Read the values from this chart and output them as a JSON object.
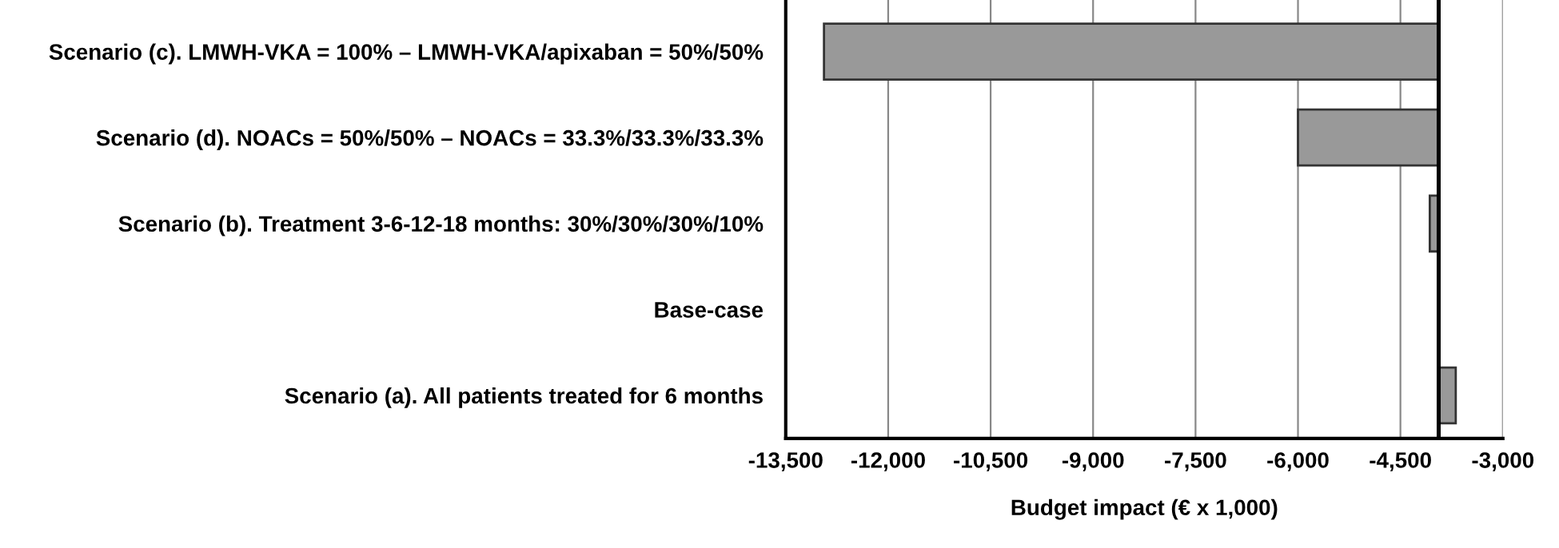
{
  "chart_data": {
    "type": "bar",
    "orientation": "horizontal",
    "categories": [
      "Scenario (c). LMWH-VKA = 100% – LMWH-VKA/apixaban = 50%/50%",
      "Scenario (d). NOACs = 50%/50% – NOACs = 33.3%/33.3%/33.3%",
      "Scenario (b). Treatment 3-6-12-18 months: 30%/30%/30%/10%",
      "Base-case",
      "Scenario (a). All patients treated for 6 months"
    ],
    "base": [
      -3940,
      -3940,
      -3940,
      null,
      -3940
    ],
    "values": [
      -9000,
      -2060,
      -130,
      null,
      250
    ],
    "color": "#999999",
    "xlabel": "Budget impact (€ x 1,000)",
    "xlim": [
      -13500,
      -3000
    ],
    "xticks": [
      {
        "value": -13500,
        "label": "-13,500"
      },
      {
        "value": -12000,
        "label": "-12,000"
      },
      {
        "value": -10500,
        "label": "-10,500"
      },
      {
        "value": -9000,
        "label": "-9,000"
      },
      {
        "value": -7500,
        "label": "-7,500"
      },
      {
        "value": -6000,
        "label": "-6,000"
      },
      {
        "value": -4500,
        "label": "-4,500"
      },
      {
        "value": -3000,
        "label": "-3,000"
      }
    ],
    "grid": "x",
    "ref_lines": [
      {
        "axis": "x",
        "value": -3940,
        "color": "#000000"
      }
    ]
  }
}
